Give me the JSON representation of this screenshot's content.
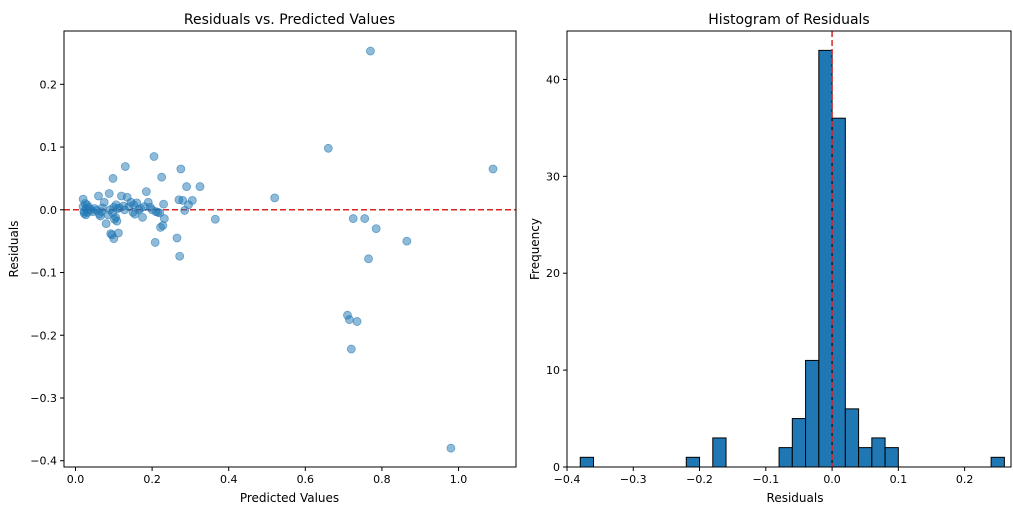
{
  "chart_data": [
    {
      "type": "scatter",
      "title": "Residuals vs. Predicted Values",
      "xlabel": "Predicted Values",
      "ylabel": "Residuals",
      "xlim": [
        -0.03,
        1.15
      ],
      "ylim": [
        -0.41,
        0.285
      ],
      "xticks": [
        0.0,
        0.2,
        0.4,
        0.6,
        0.8,
        1.0
      ],
      "xtick_labels": [
        "0.0",
        "0.2",
        "0.4",
        "0.6",
        "0.8",
        "1.0"
      ],
      "yticks": [
        -0.4,
        -0.3,
        -0.2,
        -0.1,
        0.0,
        0.1,
        0.2
      ],
      "ytick_labels": [
        "−0.4",
        "−0.3",
        "−0.2",
        "−0.1",
        "0.0",
        "0.1",
        "0.2"
      ],
      "point_color": "#1f77b4",
      "reference_line": {
        "y": 0.0,
        "color": "#d62728",
        "style": "dashed"
      },
      "points": [
        [
          0.02,
          0.017
        ],
        [
          0.02,
          0.005
        ],
        [
          0.022,
          -0.003
        ],
        [
          0.023,
          -0.006
        ],
        [
          0.025,
          0.01
        ],
        [
          0.027,
          -0.008
        ],
        [
          0.028,
          0.002
        ],
        [
          0.03,
          0.008
        ],
        [
          0.032,
          -0.004
        ],
        [
          0.035,
          0.004
        ],
        [
          0.04,
          0.0
        ],
        [
          0.045,
          -0.003
        ],
        [
          0.05,
          0.002
        ],
        [
          0.055,
          -0.001
        ],
        [
          0.06,
          0.022
        ],
        [
          0.062,
          -0.007
        ],
        [
          0.065,
          -0.01
        ],
        [
          0.068,
          -0.003
        ],
        [
          0.07,
          0.003
        ],
        [
          0.075,
          0.012
        ],
        [
          0.08,
          -0.022
        ],
        [
          0.085,
          -0.008
        ],
        [
          0.088,
          0.026
        ],
        [
          0.09,
          0.0
        ],
        [
          0.092,
          -0.038
        ],
        [
          0.095,
          -0.04
        ],
        [
          0.097,
          -0.005
        ],
        [
          0.098,
          0.05
        ],
        [
          0.1,
          0.004
        ],
        [
          0.1,
          -0.046
        ],
        [
          0.102,
          -0.015
        ],
        [
          0.105,
          -0.012
        ],
        [
          0.106,
          0.008
        ],
        [
          0.108,
          -0.018
        ],
        [
          0.11,
          0.002
        ],
        [
          0.112,
          -0.037
        ],
        [
          0.115,
          0.003
        ],
        [
          0.12,
          0.022
        ],
        [
          0.125,
          0.006
        ],
        [
          0.128,
          0.0
        ],
        [
          0.13,
          0.069
        ],
        [
          0.135,
          0.02
        ],
        [
          0.14,
          0.005
        ],
        [
          0.145,
          0.012
        ],
        [
          0.15,
          -0.004
        ],
        [
          0.152,
          0.008
        ],
        [
          0.155,
          -0.007
        ],
        [
          0.16,
          0.011
        ],
        [
          0.165,
          0.0
        ],
        [
          0.17,
          0.002
        ],
        [
          0.175,
          -0.012
        ],
        [
          0.18,
          0.005
        ],
        [
          0.185,
          0.029
        ],
        [
          0.19,
          0.012
        ],
        [
          0.195,
          0.004
        ],
        [
          0.2,
          0.0
        ],
        [
          0.205,
          0.085
        ],
        [
          0.208,
          -0.052
        ],
        [
          0.21,
          -0.003
        ],
        [
          0.215,
          -0.004
        ],
        [
          0.22,
          -0.005
        ],
        [
          0.222,
          -0.028
        ],
        [
          0.225,
          0.052
        ],
        [
          0.228,
          -0.025
        ],
        [
          0.23,
          0.009
        ],
        [
          0.232,
          -0.014
        ],
        [
          0.265,
          -0.045
        ],
        [
          0.27,
          0.016
        ],
        [
          0.272,
          -0.074
        ],
        [
          0.275,
          0.065
        ],
        [
          0.28,
          0.015
        ],
        [
          0.285,
          -0.001
        ],
        [
          0.29,
          0.037
        ],
        [
          0.295,
          0.008
        ],
        [
          0.305,
          0.015
        ],
        [
          0.325,
          0.037
        ],
        [
          0.365,
          -0.015
        ],
        [
          0.52,
          0.019
        ],
        [
          0.66,
          0.098
        ],
        [
          0.71,
          -0.168
        ],
        [
          0.715,
          -0.175
        ],
        [
          0.72,
          -0.222
        ],
        [
          0.725,
          -0.014
        ],
        [
          0.735,
          -0.178
        ],
        [
          0.755,
          -0.014
        ],
        [
          0.765,
          -0.078
        ],
        [
          0.77,
          0.253
        ],
        [
          0.785,
          -0.03
        ],
        [
          0.865,
          -0.05
        ],
        [
          0.98,
          -0.38
        ],
        [
          1.09,
          0.065
        ]
      ]
    },
    {
      "type": "bar",
      "subtype": "histogram",
      "title": "Histogram of Residuals",
      "xlabel": "Residuals",
      "ylabel": "Frequency",
      "xlim": [
        -0.4,
        0.27
      ],
      "ylim": [
        0,
        45
      ],
      "xticks": [
        -0.4,
        -0.3,
        -0.2,
        -0.1,
        0.0,
        0.1,
        0.2
      ],
      "xtick_labels": [
        "−0.4",
        "−0.3",
        "−0.2",
        "−0.1",
        "0.0",
        "0.1",
        "0.2"
      ],
      "yticks": [
        0,
        10,
        20,
        30,
        40
      ],
      "ytick_labels": [
        "0",
        "10",
        "20",
        "30",
        "40"
      ],
      "bar_color": "#1f77b4",
      "edge_color": "#000000",
      "reference_line": {
        "x": 0.0,
        "color": "#d62728",
        "style": "dashed"
      },
      "bin_start": -0.38,
      "bin_width": 0.02,
      "counts": [
        1,
        0,
        0,
        0,
        0,
        0,
        0,
        0,
        1,
        0,
        3,
        0,
        0,
        0,
        0,
        2,
        5,
        11,
        43,
        36,
        6,
        2,
        3,
        2,
        0,
        0,
        0,
        0,
        0,
        0,
        0,
        1
      ]
    }
  ]
}
